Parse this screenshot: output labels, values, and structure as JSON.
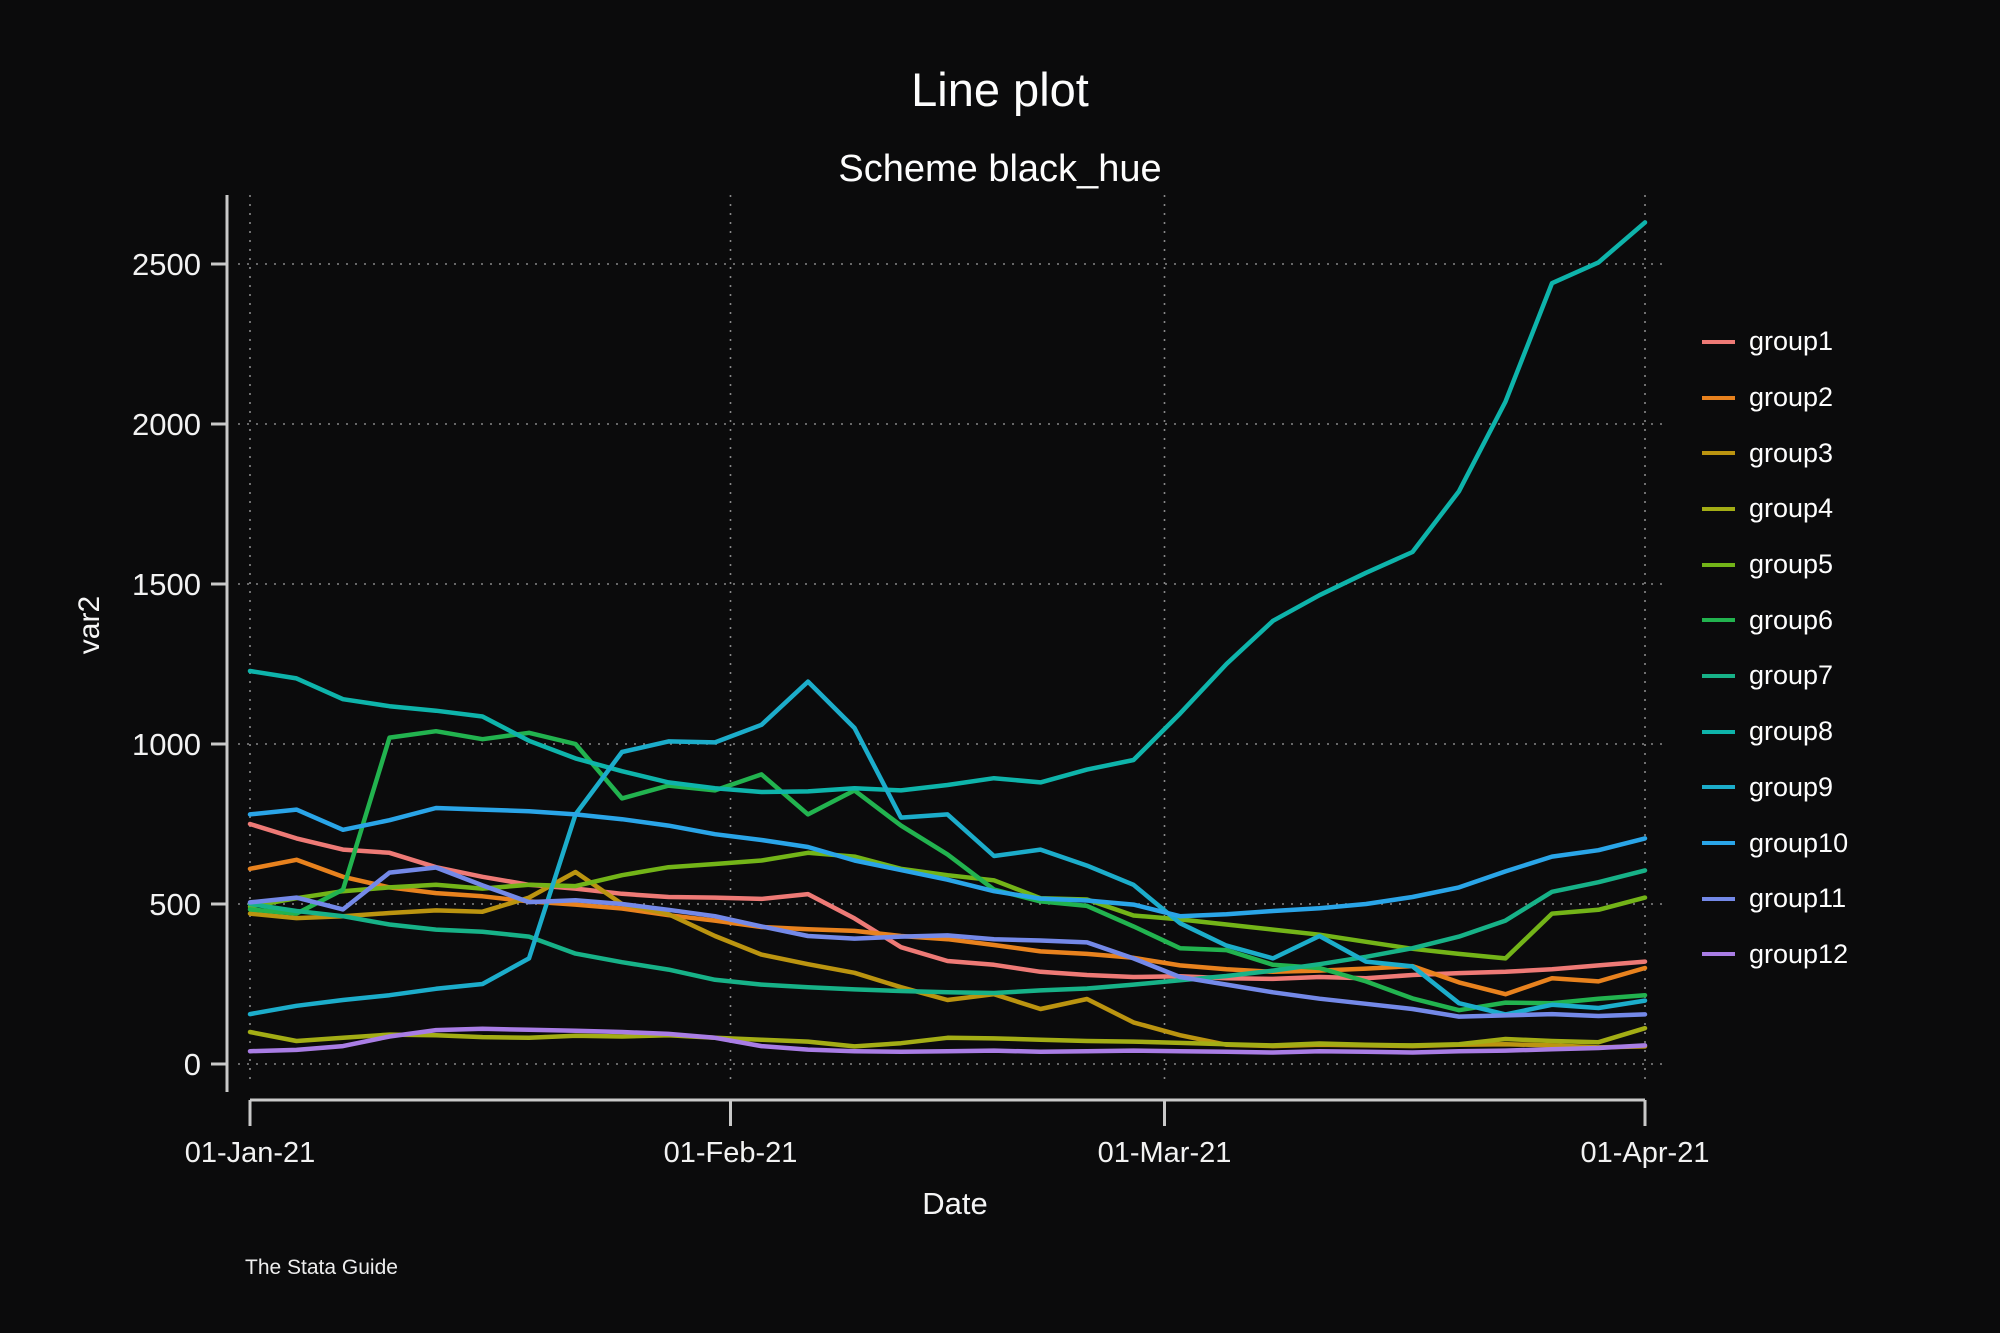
{
  "title": "Line plot",
  "subtitle": "Scheme black_hue",
  "watermark": "The Stata Guide",
  "colors": {
    "background": "#0b0b0c",
    "axis": "#c9c9c9",
    "grid": "#a8a8a8",
    "text": "#f2f2f2"
  },
  "chart_data": {
    "type": "line",
    "title": "Line plot",
    "subtitle": "Scheme black_hue",
    "xlabel": "Date",
    "ylabel": "var2",
    "ylim": [
      0,
      2700
    ],
    "grid": "dotted",
    "legend_position": "right",
    "x_ticks": [
      {
        "label": "01-Jan-21",
        "day": 0
      },
      {
        "label": "01-Feb-21",
        "day": 31
      },
      {
        "label": "01-Mar-21",
        "day": 59
      },
      {
        "label": "01-Apr-21",
        "day": 90
      }
    ],
    "y_ticks": [
      0,
      500,
      1000,
      1500,
      2000,
      2500
    ],
    "sample_days": [
      0,
      3,
      6,
      9,
      12,
      15,
      18,
      21,
      24,
      27,
      30,
      33,
      36,
      39,
      42,
      45,
      48,
      51,
      54,
      57,
      60,
      63,
      66,
      69,
      72,
      75,
      78,
      81,
      84,
      87,
      90
    ],
    "series": [
      {
        "name": "group1",
        "color": "#ee7a76",
        "values": [
          750,
          705,
          670,
          660,
          615,
          585,
          560,
          548,
          532,
          522,
          520,
          516,
          531,
          455,
          365,
          322,
          310,
          288,
          278,
          272,
          274,
          268,
          266,
          272,
          268,
          278,
          284,
          288,
          296,
          308,
          320
        ]
      },
      {
        "name": "group2",
        "color": "#e8821e",
        "values": [
          610,
          638,
          585,
          552,
          534,
          524,
          508,
          498,
          486,
          465,
          448,
          428,
          421,
          416,
          400,
          390,
          372,
          352,
          344,
          332,
          308,
          296,
          288,
          292,
          298,
          306,
          255,
          218,
          268,
          258,
          300
        ]
      },
      {
        "name": "group3",
        "color": "#bb9410",
        "values": [
          470,
          456,
          462,
          472,
          480,
          476,
          520,
          600,
          500,
          468,
          400,
          342,
          312,
          285,
          240,
          200,
          218,
          172,
          203,
          130,
          90,
          60,
          56,
          60,
          58,
          56,
          60,
          62,
          58,
          52,
          55
        ]
      },
      {
        "name": "group4",
        "color": "#a3ad15",
        "values": [
          100,
          72,
          82,
          92,
          90,
          84,
          82,
          88,
          86,
          90,
          82,
          76,
          70,
          55,
          65,
          82,
          80,
          76,
          72,
          70,
          66,
          62,
          58,
          64,
          60,
          58,
          62,
          78,
          72,
          68,
          112
        ]
      },
      {
        "name": "group5",
        "color": "#73b418",
        "values": [
          492,
          518,
          540,
          552,
          560,
          548,
          560,
          556,
          590,
          615,
          625,
          636,
          660,
          648,
          610,
          590,
          574,
          518,
          514,
          464,
          452,
          436,
          420,
          404,
          382,
          360,
          344,
          330,
          470,
          482,
          520
        ]
      },
      {
        "name": "group6",
        "color": "#22b34f",
        "values": [
          483,
          470,
          545,
          1020,
          1040,
          1015,
          1035,
          1000,
          830,
          870,
          855,
          905,
          780,
          855,
          745,
          655,
          545,
          508,
          494,
          430,
          362,
          356,
          310,
          300,
          258,
          205,
          168,
          192,
          190,
          204,
          215
        ]
      },
      {
        "name": "group7",
        "color": "#17b288",
        "values": [
          500,
          478,
          462,
          436,
          420,
          413,
          398,
          345,
          318,
          295,
          263,
          248,
          240,
          233,
          228,
          224,
          222,
          230,
          236,
          248,
          262,
          275,
          292,
          312,
          335,
          362,
          398,
          448,
          538,
          568,
          605
        ]
      },
      {
        "name": "group8",
        "color": "#0eb4ab",
        "values": [
          1228,
          1205,
          1140,
          1118,
          1104,
          1086,
          1010,
          955,
          915,
          880,
          862,
          850,
          852,
          862,
          855,
          872,
          893,
          880,
          920,
          950,
          1095,
          1250,
          1385,
          1465,
          1535,
          1600,
          1790,
          2070,
          2440,
          2505,
          2630
        ]
      },
      {
        "name": "group9",
        "color": "#1cadcb",
        "values": [
          156,
          182,
          200,
          215,
          235,
          250,
          330,
          780,
          975,
          1008,
          1005,
          1060,
          1195,
          1050,
          770,
          780,
          650,
          670,
          620,
          560,
          440,
          370,
          330,
          400,
          320,
          305,
          190,
          155,
          185,
          175,
          198
        ]
      },
      {
        "name": "group10",
        "color": "#2aa5e8",
        "values": [
          780,
          795,
          732,
          762,
          800,
          795,
          790,
          780,
          765,
          745,
          718,
          700,
          678,
          636,
          606,
          576,
          540,
          517,
          511,
          498,
          462,
          468,
          478,
          487,
          500,
          522,
          552,
          602,
          648,
          668,
          705
        ]
      },
      {
        "name": "group11",
        "color": "#7489e8",
        "values": [
          505,
          520,
          483,
          598,
          614,
          558,
          506,
          512,
          500,
          482,
          462,
          430,
          400,
          392,
          398,
          402,
          390,
          386,
          380,
          330,
          272,
          248,
          224,
          204,
          188,
          172,
          148,
          152,
          156,
          150,
          155
        ]
      },
      {
        "name": "group12",
        "color": "#a97de5",
        "values": [
          40,
          44,
          56,
          86,
          106,
          110,
          107,
          104,
          100,
          94,
          82,
          56,
          45,
          40,
          38,
          40,
          42,
          38,
          40,
          42,
          40,
          38,
          36,
          40,
          38,
          36,
          40,
          42,
          46,
          50,
          58
        ]
      }
    ]
  }
}
